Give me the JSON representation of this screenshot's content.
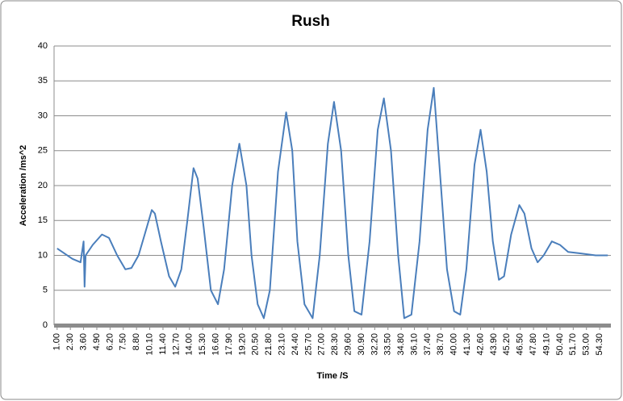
{
  "chart_data": {
    "type": "line",
    "title": "Rush",
    "x_label": "Time /S",
    "y_label": "Acceleration /ms^2",
    "series": [
      {
        "name": "Acceleration",
        "color": "#4a7ebb",
        "x": [
          1.0,
          2.5,
          3.3,
          3.6,
          3.7,
          3.8,
          4.5,
          5.4,
          6.1,
          6.9,
          7.7,
          8.3,
          9.0,
          9.6,
          10.3,
          10.6,
          11.2,
          12.0,
          12.6,
          13.2,
          13.8,
          14.4,
          14.8,
          15.4,
          16.1,
          16.8,
          17.4,
          18.2,
          18.9,
          19.6,
          20.1,
          20.7,
          21.3,
          21.9,
          22.7,
          23.5,
          24.1,
          24.6,
          25.3,
          26.1,
          26.8,
          27.6,
          28.2,
          28.9,
          29.6,
          30.2,
          30.9,
          31.7,
          32.5,
          33.1,
          33.8,
          34.5,
          35.1,
          35.8,
          36.6,
          37.4,
          38.0,
          38.6,
          39.3,
          40.0,
          40.6,
          41.2,
          42.0,
          42.6,
          43.2,
          43.8,
          44.4,
          44.9,
          45.6,
          46.4,
          46.9,
          47.6,
          48.2,
          48.8,
          49.6,
          50.4,
          51.2,
          52.3,
          53.9,
          55.1
        ],
        "values": [
          11,
          9.5,
          9,
          12,
          5.5,
          10,
          11.5,
          13,
          12.5,
          10,
          8,
          8.2,
          10,
          13,
          16.5,
          16,
          12,
          7,
          5.5,
          8,
          15,
          22.5,
          21,
          14,
          5,
          3,
          8,
          20,
          26,
          20,
          10,
          3,
          1,
          5,
          22,
          30.5,
          25,
          12,
          3,
          1,
          10,
          26,
          32,
          25,
          10,
          2,
          1.5,
          12,
          28,
          32.5,
          25,
          10,
          1,
          1.5,
          12,
          28,
          34,
          22,
          8,
          2,
          1.5,
          8,
          23,
          28,
          22,
          12,
          6.5,
          7,
          13,
          17.2,
          16,
          11,
          9,
          10,
          12,
          11.5,
          10.5,
          10.3,
          10,
          10
        ]
      }
    ],
    "xlim": [
      0.7,
      55.4
    ],
    "ylim": [
      0,
      40
    ],
    "yticks": [
      0,
      5,
      10,
      15,
      20,
      25,
      30,
      35,
      40
    ],
    "grid": true,
    "xticks": [
      {
        "value": 1,
        "label": "1.00"
      },
      {
        "value": 2.3,
        "label": "2.30"
      },
      {
        "value": 3.6,
        "label": "3.60"
      },
      {
        "value": 4.9,
        "label": "4.90"
      },
      {
        "value": 6.2,
        "label": "6.20"
      },
      {
        "value": 7.5,
        "label": "7.50"
      },
      {
        "value": 8.8,
        "label": "8.80"
      },
      {
        "value": 10.1,
        "label": "10.10"
      },
      {
        "value": 11.4,
        "label": "11.40"
      },
      {
        "value": 12.7,
        "label": "12.70"
      },
      {
        "value": 14,
        "label": "14.00"
      },
      {
        "value": 15.3,
        "label": "15.30"
      },
      {
        "value": 16.6,
        "label": "16.60"
      },
      {
        "value": 17.9,
        "label": "17.90"
      },
      {
        "value": 19.2,
        "label": "19.20"
      },
      {
        "value": 20.5,
        "label": "20.50"
      },
      {
        "value": 21.8,
        "label": "21.80"
      },
      {
        "value": 23.1,
        "label": "23.10"
      },
      {
        "value": 24.4,
        "label": "24.40"
      },
      {
        "value": 25.7,
        "label": "25.70"
      },
      {
        "value": 27,
        "label": "27.00"
      },
      {
        "value": 28.3,
        "label": "28.30"
      },
      {
        "value": 29.6,
        "label": "29.60"
      },
      {
        "value": 30.9,
        "label": "30.90"
      },
      {
        "value": 32.2,
        "label": "32.20"
      },
      {
        "value": 33.5,
        "label": "33.50"
      },
      {
        "value": 34.8,
        "label": "34.80"
      },
      {
        "value": 36.1,
        "label": "36.10"
      },
      {
        "value": 37.4,
        "label": "37.40"
      },
      {
        "value": 38.7,
        "label": "38.70"
      },
      {
        "value": 40,
        "label": "40.00"
      },
      {
        "value": 41.3,
        "label": "41.30"
      },
      {
        "value": 42.6,
        "label": "42.60"
      },
      {
        "value": 43.9,
        "label": "43.90"
      },
      {
        "value": 45.2,
        "label": "45.20"
      },
      {
        "value": 46.5,
        "label": "46.50"
      },
      {
        "value": 47.8,
        "label": "47.80"
      },
      {
        "value": 49.1,
        "label": "49.10"
      },
      {
        "value": 50.4,
        "label": "50.40"
      },
      {
        "value": 51.7,
        "label": "51.70"
      },
      {
        "value": 53,
        "label": "53.00"
      },
      {
        "value": 54.3,
        "label": "54.30"
      }
    ]
  }
}
